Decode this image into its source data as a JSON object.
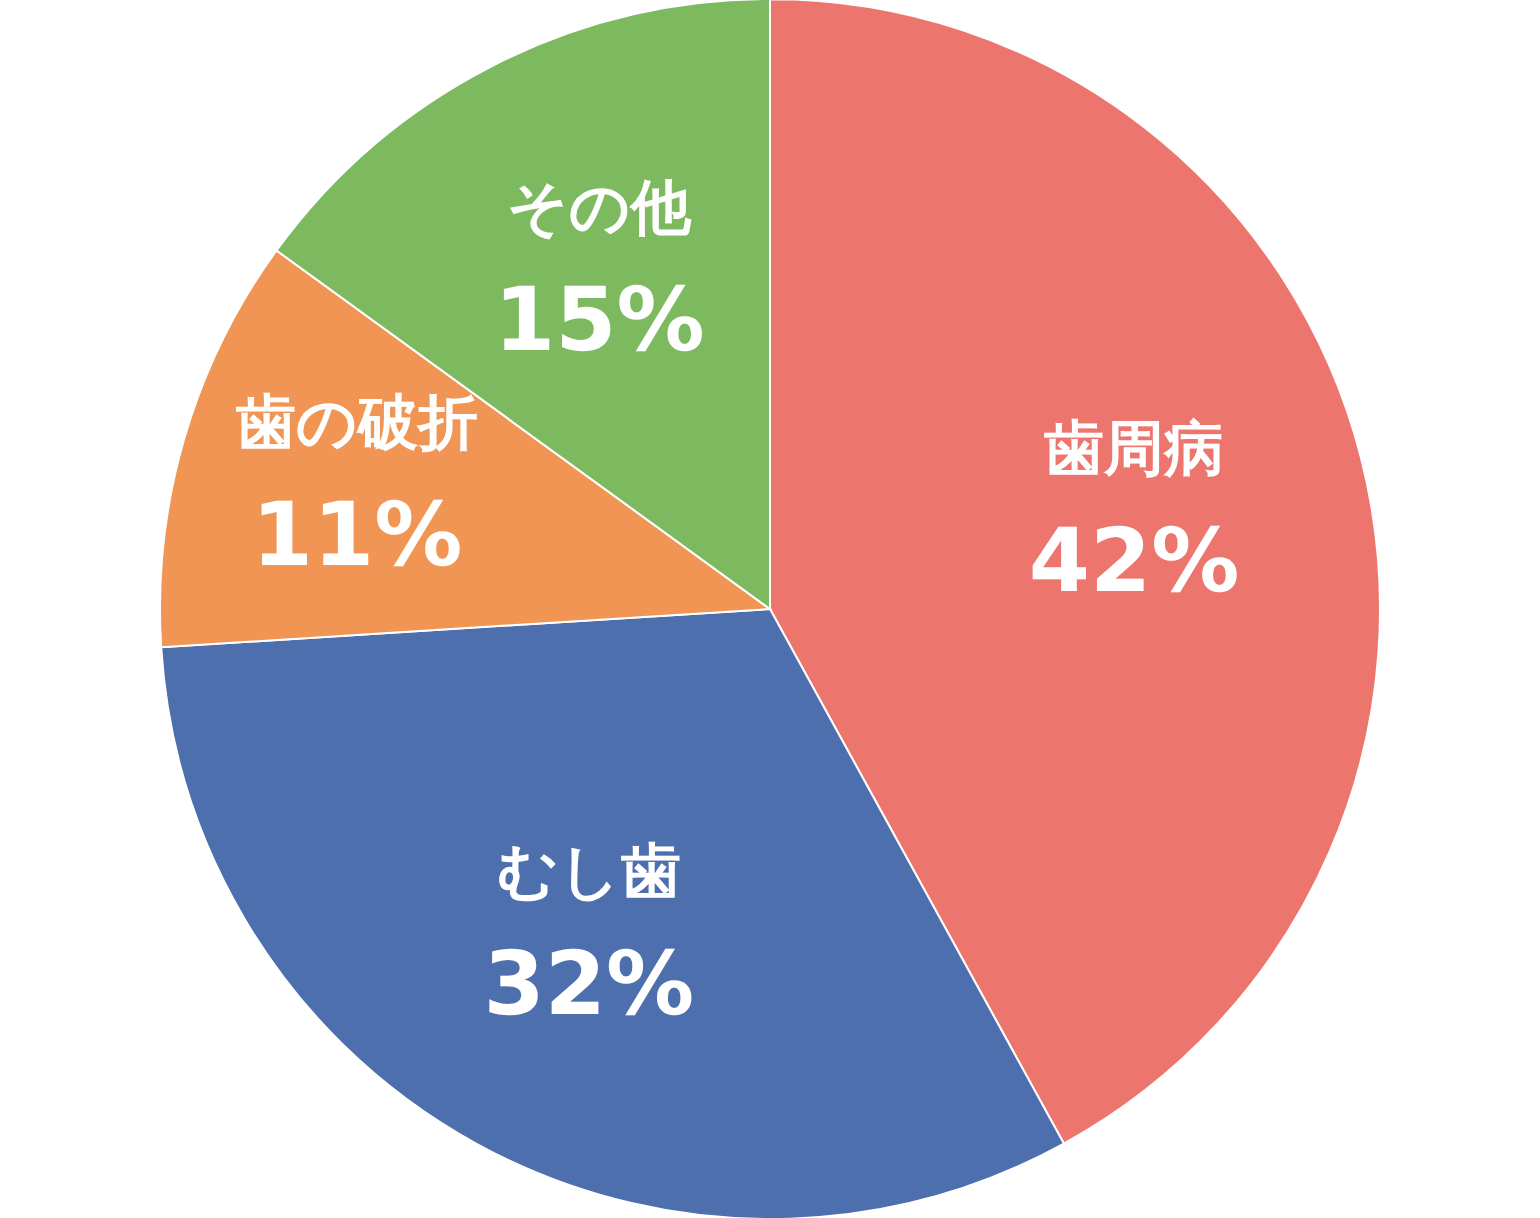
{
  "chart_data": {
    "type": "pie",
    "categories": [
      "歯周病",
      "むし歯",
      "歯の破折",
      "その他"
    ],
    "values": [
      42,
      32,
      11,
      15
    ],
    "value_labels": [
      "42%",
      "32%",
      "11%",
      "15%"
    ],
    "colors": [
      "#ec766e",
      "#4e6fae",
      "#f09553",
      "#7cb95f"
    ]
  }
}
